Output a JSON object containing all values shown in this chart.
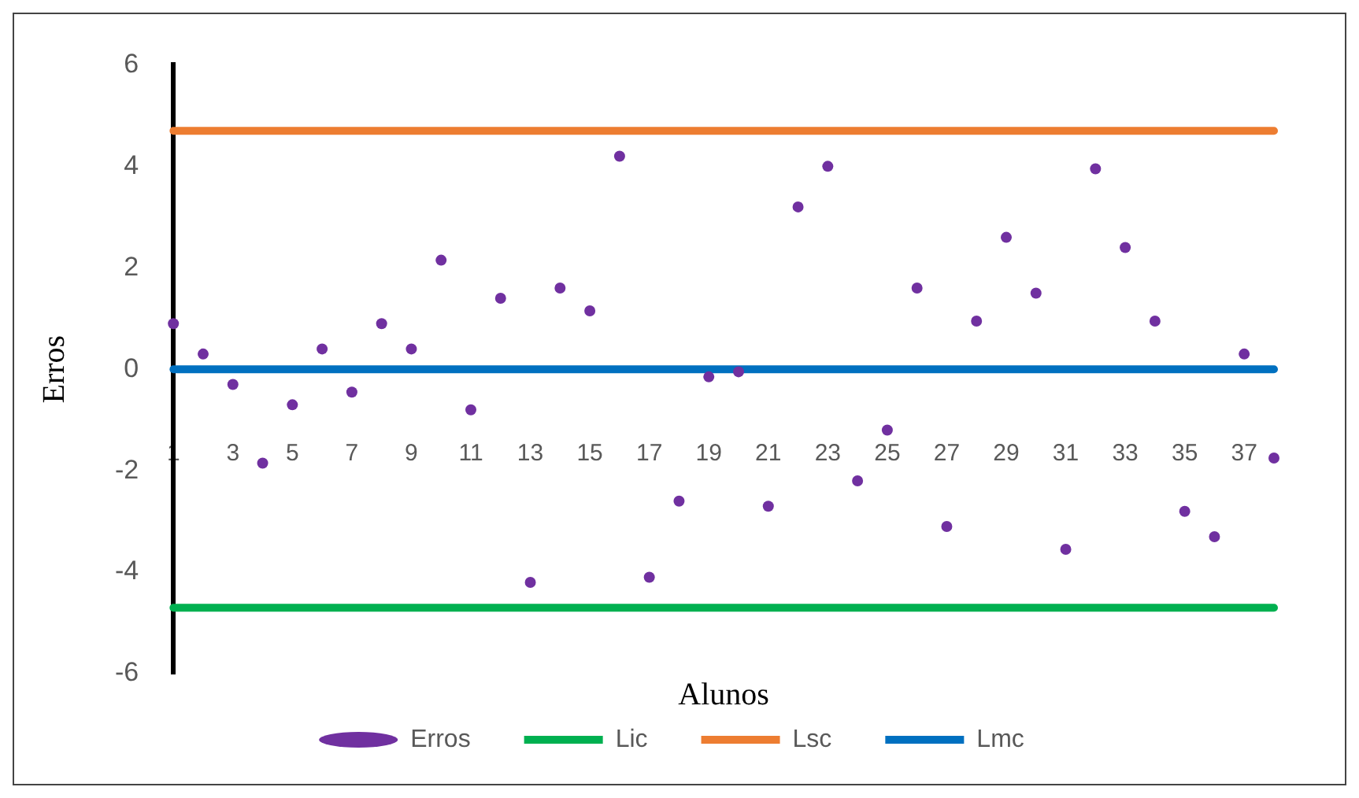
{
  "chart_data": {
    "type": "line",
    "xlabel": "Alunos",
    "ylabel": "Erros",
    "categories": [
      "1",
      null,
      "3",
      null,
      "5",
      null,
      "7",
      null,
      "9",
      null,
      "11",
      null,
      "13",
      null,
      "15",
      null,
      "17",
      null,
      "19",
      null,
      "21",
      null,
      "23",
      null,
      "25",
      null,
      "27",
      null,
      "29",
      null,
      "31",
      null,
      "33",
      null,
      "35",
      null,
      "37",
      null
    ],
    "series": [
      {
        "name": "Lic",
        "marker": "none",
        "color": "#00b050",
        "values": [
          -4.7,
          -4.7,
          -4.7,
          -4.7,
          -4.7,
          -4.7,
          -4.7,
          -4.7,
          -4.7,
          -4.7,
          -4.7,
          -4.7,
          -4.7,
          -4.7,
          -4.7,
          -4.7,
          -4.7,
          -4.7,
          -4.7,
          -4.7,
          -4.7,
          -4.7,
          -4.7,
          -4.7,
          -4.7,
          -4.7,
          -4.7,
          -4.7,
          -4.7,
          -4.7,
          -4.7,
          -4.7,
          -4.7,
          -4.7,
          -4.7,
          -4.7,
          -4.7,
          -4.7
        ]
      },
      {
        "name": "Lsc",
        "marker": "none",
        "color": "#ed7d31",
        "values": [
          4.7,
          4.7,
          4.7,
          4.7,
          4.7,
          4.7,
          4.7,
          4.7,
          4.7,
          4.7,
          4.7,
          4.7,
          4.7,
          4.7,
          4.7,
          4.7,
          4.7,
          4.7,
          4.7,
          4.7,
          4.7,
          4.7,
          4.7,
          4.7,
          4.7,
          4.7,
          4.7,
          4.7,
          4.7,
          4.7,
          4.7,
          4.7,
          4.7,
          4.7,
          4.7,
          4.7,
          4.7,
          4.7
        ]
      },
      {
        "name": "Lmc",
        "marker": "none",
        "color": "#0070c0",
        "values": [
          0,
          0,
          0,
          0,
          0,
          0,
          0,
          0,
          0,
          0,
          0,
          0,
          0,
          0,
          0,
          0,
          0,
          0,
          0,
          0,
          0,
          0,
          0,
          0,
          0,
          0,
          0,
          0,
          0,
          0,
          0,
          0,
          0,
          0,
          0,
          0,
          0,
          0
        ]
      },
      {
        "name": "Erros",
        "type": "scatter",
        "marker": "circle",
        "color": "#7030a0",
        "values": [
          0.9,
          0.3,
          -0.3,
          -1.85,
          -0.7,
          0.4,
          -0.45,
          0.9,
          0.4,
          2.15,
          -0.8,
          1.4,
          -4.2,
          1.6,
          1.15,
          4.2,
          -4.1,
          -2.6,
          -0.15,
          -0.05,
          -2.7,
          3.2,
          4.0,
          -2.2,
          -1.2,
          1.6,
          -3.1,
          0.95,
          2.6,
          1.5,
          -3.55,
          3.95,
          2.4,
          0.95,
          -2.8,
          -3.3,
          0.3,
          -1.75
        ]
      }
    ],
    "ylim": [
      -6,
      6
    ],
    "yticks": [
      -6,
      -4,
      -2,
      0,
      2,
      4,
      6
    ],
    "grid": false,
    "legend": "bottom"
  }
}
